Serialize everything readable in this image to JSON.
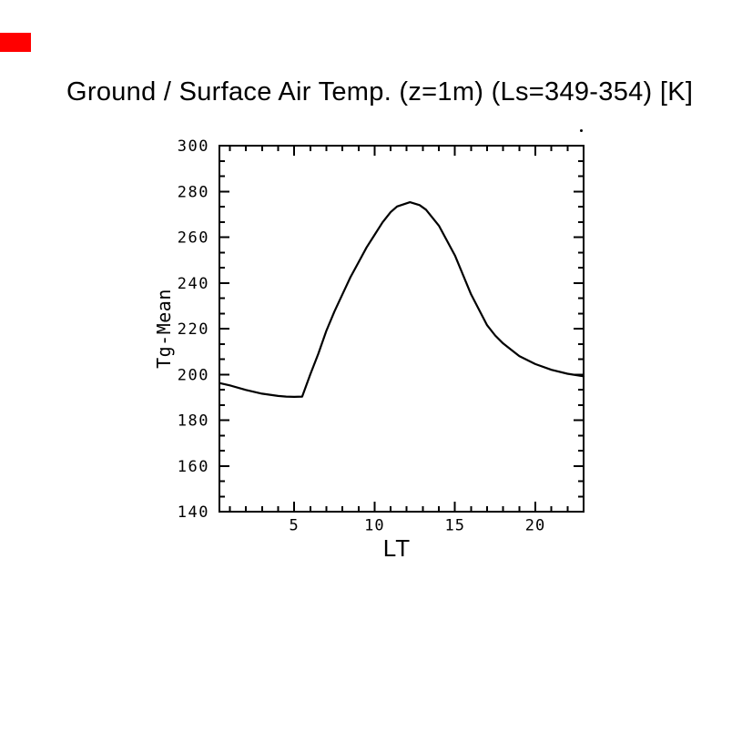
{
  "page": {
    "background": "#ffffff"
  },
  "corner_marker": {
    "color": "#ff0000"
  },
  "chart_data": {
    "type": "line",
    "title": "Ground / Surface Air Temp. (z=1m) (Ls=349-354) [K]",
    "xlabel": "LT",
    "ylabel": "Tg-Mean",
    "xlim": [
      0.35,
      23.0
    ],
    "ylim": [
      140,
      300
    ],
    "xticks_major": [
      5,
      10,
      15,
      20
    ],
    "xticks_minor": [
      1,
      2,
      3,
      4,
      6,
      7,
      8,
      9,
      11,
      12,
      13,
      14,
      16,
      17,
      18,
      19,
      21,
      22,
      23
    ],
    "yticks_major": [
      140,
      160,
      180,
      200,
      220,
      240,
      260,
      280,
      300
    ],
    "y_minors_between_majors": 2,
    "grid": false,
    "legend": null,
    "line_color": "#000000",
    "frame_color": "#000000",
    "background": "#ffffff",
    "series": [
      {
        "name": "Tg-Mean",
        "points": [
          [
            0.37,
            196.2
          ],
          [
            1,
            195.2
          ],
          [
            2,
            193.2
          ],
          [
            3,
            191.6
          ],
          [
            4,
            190.6
          ],
          [
            4.5,
            190.3
          ],
          [
            5,
            190.2
          ],
          [
            5.5,
            190.3
          ],
          [
            6,
            200
          ],
          [
            6.5,
            209
          ],
          [
            7,
            219
          ],
          [
            7.5,
            227.5
          ],
          [
            8,
            235
          ],
          [
            8.5,
            242.5
          ],
          [
            9,
            249
          ],
          [
            9.5,
            255.5
          ],
          [
            10,
            261
          ],
          [
            10.5,
            266.5
          ],
          [
            11,
            271
          ],
          [
            11.4,
            273.4
          ],
          [
            12.2,
            275.3
          ],
          [
            12.8,
            274
          ],
          [
            13.2,
            272
          ],
          [
            14,
            265
          ],
          [
            15,
            252
          ],
          [
            16,
            235
          ],
          [
            17,
            221.5
          ],
          [
            17.5,
            217
          ],
          [
            18,
            213.5
          ],
          [
            19,
            208
          ],
          [
            20,
            204.5
          ],
          [
            21,
            202
          ],
          [
            22,
            200.3
          ],
          [
            23,
            199.2
          ]
        ]
      }
    ]
  }
}
